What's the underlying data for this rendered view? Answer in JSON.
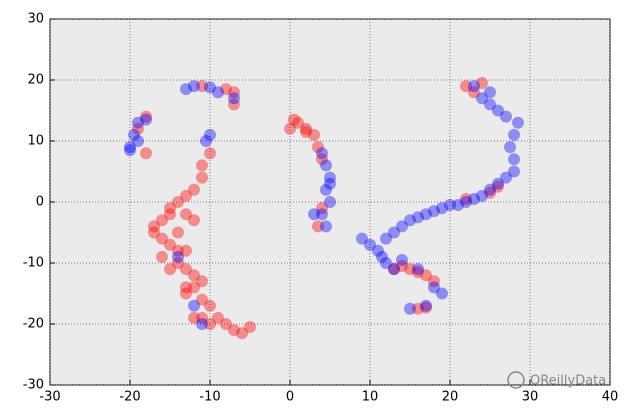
{
  "chart_data": {
    "type": "scatter",
    "xlim": [
      -30,
      40
    ],
    "ylim": [
      -30,
      30
    ],
    "xticks": [
      -30,
      -20,
      -10,
      0,
      10,
      20,
      30,
      40
    ],
    "yticks": [
      -30,
      -20,
      -10,
      0,
      10,
      20,
      30
    ],
    "grid": true,
    "series": [
      {
        "color": "#ff0000",
        "x": [
          -18,
          -19,
          -18,
          -11,
          -8,
          -7,
          -7,
          -10,
          -11,
          -11,
          -12,
          -13,
          -14,
          -15,
          -15,
          -16,
          -17,
          -17,
          -16,
          -15,
          -14,
          -14,
          -13,
          -12,
          -12,
          -13,
          -11,
          -10,
          -12,
          -11,
          -10,
          -9,
          -8,
          -7,
          -6,
          -5,
          -16,
          -15,
          -13,
          -12,
          -13,
          -14,
          -13,
          -11,
          0,
          0.5,
          1,
          2,
          3,
          3.5,
          4,
          4,
          3.5,
          2,
          13,
          14,
          15,
          16,
          17,
          18,
          16,
          17,
          22,
          24,
          23,
          25,
          26,
          22
        ],
        "values": [
          8,
          12,
          14,
          19,
          18.5,
          18,
          16,
          8,
          6,
          4,
          2,
          1,
          0,
          -1,
          -2,
          -3,
          -4,
          -5,
          -6,
          -7,
          -8,
          -10,
          -11,
          -12,
          -14,
          -15,
          -16,
          -17,
          -19,
          -19,
          -20,
          -19,
          -20,
          -21,
          -21.5,
          -20.5,
          -9,
          -11,
          -8,
          -3,
          -2,
          -5,
          -14,
          -13,
          12,
          13.5,
          13,
          12,
          11,
          9,
          7,
          -1,
          -4,
          11.5,
          -11,
          -10.5,
          -11,
          -11.5,
          -12,
          -13,
          -17.5,
          -17.3,
          19,
          19.5,
          18,
          1.5,
          2.5,
          0.5
        ]
      },
      {
        "color": "#0000ff",
        "x": [
          -20,
          -19.5,
          -19,
          -18,
          -19,
          -20,
          -13,
          -12,
          -10,
          -9,
          -7,
          -10,
          -10.5,
          4,
          4.5,
          5,
          4.5,
          5,
          4,
          4.5,
          3,
          5,
          12,
          11,
          11.5,
          12,
          13,
          14,
          15,
          16,
          17,
          18,
          19,
          20,
          21,
          22,
          23,
          24,
          25,
          26,
          27,
          28,
          28,
          27.5,
          28,
          28.5,
          27,
          26,
          25,
          24,
          23,
          25,
          9,
          14,
          16,
          18,
          17,
          19,
          15,
          10,
          13,
          -14,
          -12,
          -11
        ],
        "values": [
          9,
          11,
          13,
          13.5,
          10,
          8.5,
          18.5,
          19,
          18.8,
          18,
          17,
          11,
          10,
          8,
          6,
          4,
          2,
          0,
          -2,
          -4,
          -2,
          3,
          -6,
          -8,
          -9,
          -10,
          -5,
          -4,
          -3,
          -2.5,
          -2,
          -1.5,
          -1,
          -0.5,
          -0.5,
          0,
          0.5,
          1,
          2,
          3,
          4,
          5,
          7,
          9,
          11,
          13,
          14,
          15,
          16,
          17,
          19,
          18,
          -6,
          -9.5,
          -11,
          -14,
          -17,
          -15,
          -17.5,
          -7,
          -11,
          -9,
          -17,
          -20
        ]
      }
    ],
    "watermark": "OReillyData"
  }
}
